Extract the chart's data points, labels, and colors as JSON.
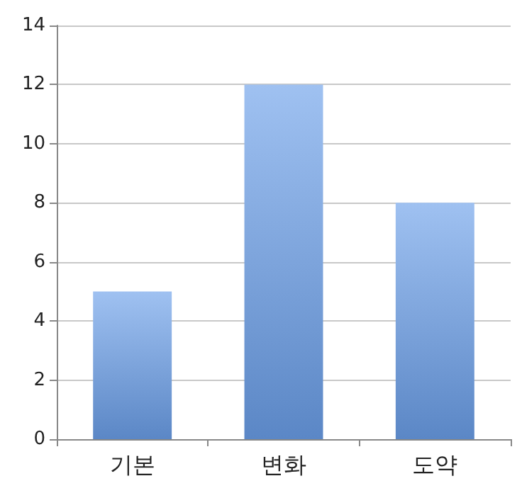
{
  "chart_data": {
    "type": "bar",
    "categories": [
      "기본",
      "변화",
      "도약"
    ],
    "values": [
      5,
      12,
      8
    ],
    "color": "#6b9fe9",
    "ylim": [
      0,
      14
    ],
    "yticks": [
      0,
      2,
      4,
      6,
      8,
      10,
      12,
      14
    ],
    "grid": "y"
  }
}
